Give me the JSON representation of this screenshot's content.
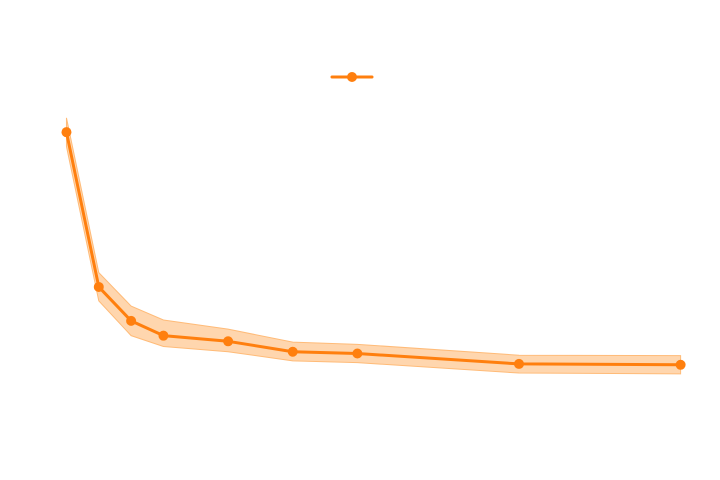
{
  "chart_data": {
    "type": "line",
    "title": "",
    "xlabel": "",
    "ylabel": "",
    "x": [
      1,
      2,
      3,
      4,
      6,
      8,
      10,
      15,
      20
    ],
    "series": [
      {
        "values": [
          0.888,
          0.532,
          0.454,
          0.42,
          0.407,
          0.383,
          0.379,
          0.355,
          0.353
        ],
        "lower": [
          0.855,
          0.5,
          0.42,
          0.395,
          0.383,
          0.362,
          0.358,
          0.334,
          0.332
        ],
        "upper": [
          0.921,
          0.565,
          0.488,
          0.456,
          0.435,
          0.405,
          0.4,
          0.375,
          0.374
        ],
        "color": "#ff7f0e",
        "band_color": "#ffbb78",
        "marker": "circle"
      }
    ],
    "xlim": [
      0.8,
      20.6
    ],
    "ylim": [
      0.18,
      1.1
    ],
    "grid": false,
    "legend": "top-center"
  }
}
